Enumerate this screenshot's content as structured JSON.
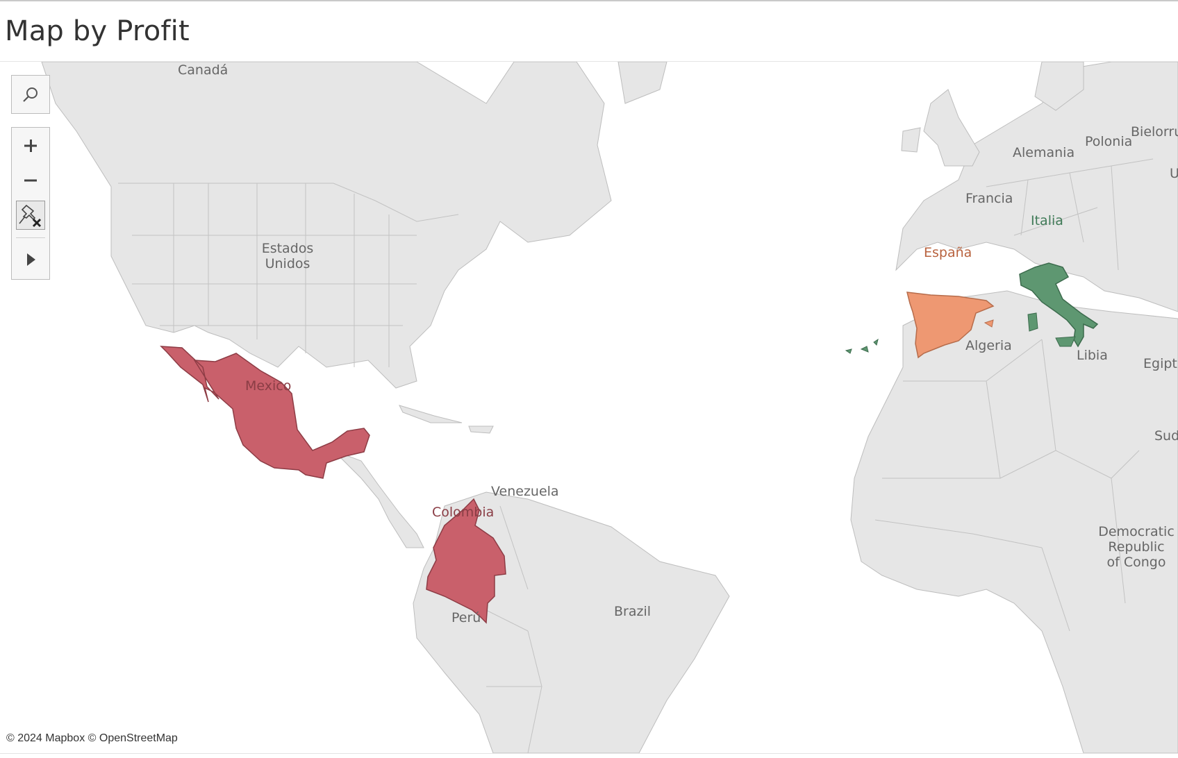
{
  "title": "Map by Profit",
  "colors": {
    "loss": "#c9606b",
    "small_profit": "#ee9872",
    "high_profit": "#5e9771",
    "land": "#e6e6e6",
    "water": "#ffffff"
  },
  "controls": {
    "search_icon": "search-icon",
    "zoom_in_icon": "plus-icon",
    "zoom_out_icon": "minus-icon",
    "unpin_icon": "unpin-icon",
    "expand_icon": "play-arrow-icon"
  },
  "regions": [
    {
      "label": "Mexico",
      "color": "#c9606b"
    },
    {
      "label": "Colombia",
      "color": "#c9606b"
    },
    {
      "label": "España",
      "color": "#ee9872"
    },
    {
      "label": "Italia",
      "color": "#5e9771"
    }
  ],
  "base_labels": {
    "canada": "Canadá",
    "usa_line1": "Estados",
    "usa_line2": "Unidos",
    "venezuela": "Venezuela",
    "brazil": "Brazil",
    "peru": "Perú",
    "algeria": "Algeria",
    "libya": "Libia",
    "egypt": "Egipt",
    "sudan": "Sud",
    "france": "Francia",
    "germany": "Alemania",
    "poland": "Polonia",
    "belarus": "Bielorru",
    "ukraine": "U",
    "drc_line1": "Democratic",
    "drc_line2": "Republic",
    "drc_line3": "of Congo"
  },
  "attribution": "© 2024 Mapbox © OpenStreetMap"
}
